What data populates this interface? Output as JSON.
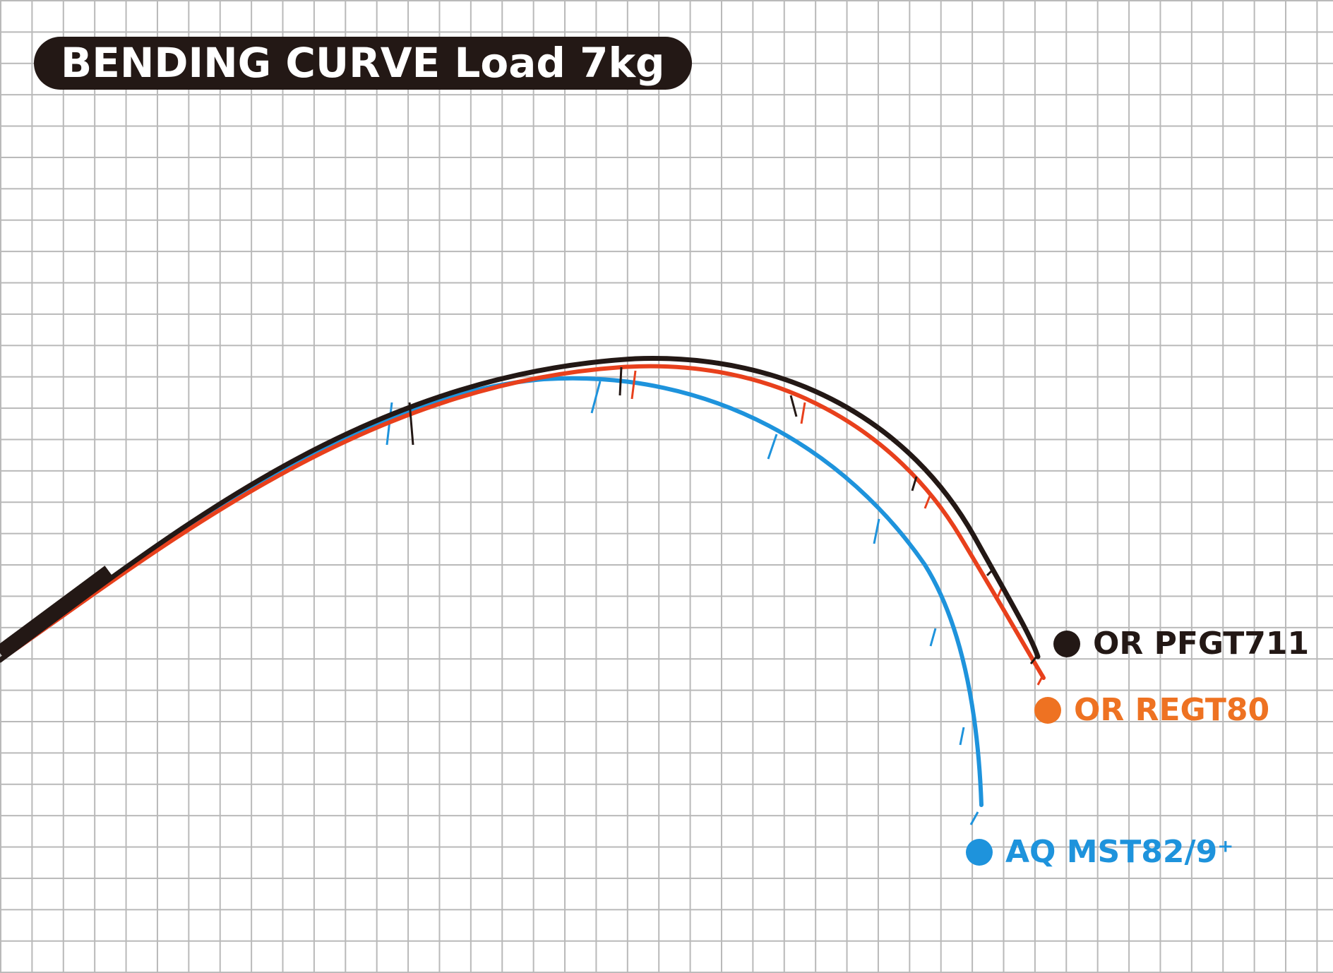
{
  "chart_data": {
    "type": "line",
    "title": "BENDING CURVE Load 7kg",
    "xlabel": "",
    "ylabel": "",
    "grid": true,
    "legend_placement": "right",
    "series": [
      {
        "name": "OR PFGT711",
        "color": "#231815",
        "tip_point": [
          14.8,
          6.9
        ]
      },
      {
        "name": "OR REGT80",
        "color": "#ee7222",
        "tip_point": [
          14.8,
          6.6
        ]
      },
      {
        "name": "AQ MST82/9⁺",
        "color": "#1e93dc",
        "tip_point": [
          13.9,
          3.7
        ]
      }
    ]
  },
  "legend": {
    "items": [
      {
        "label": "OR PFGT711",
        "color": "#231815"
      },
      {
        "label": "OR REGT80",
        "color": "#ee7222"
      },
      {
        "label": "AQ MST82/9⁺",
        "color": "#1e93dc"
      }
    ]
  }
}
